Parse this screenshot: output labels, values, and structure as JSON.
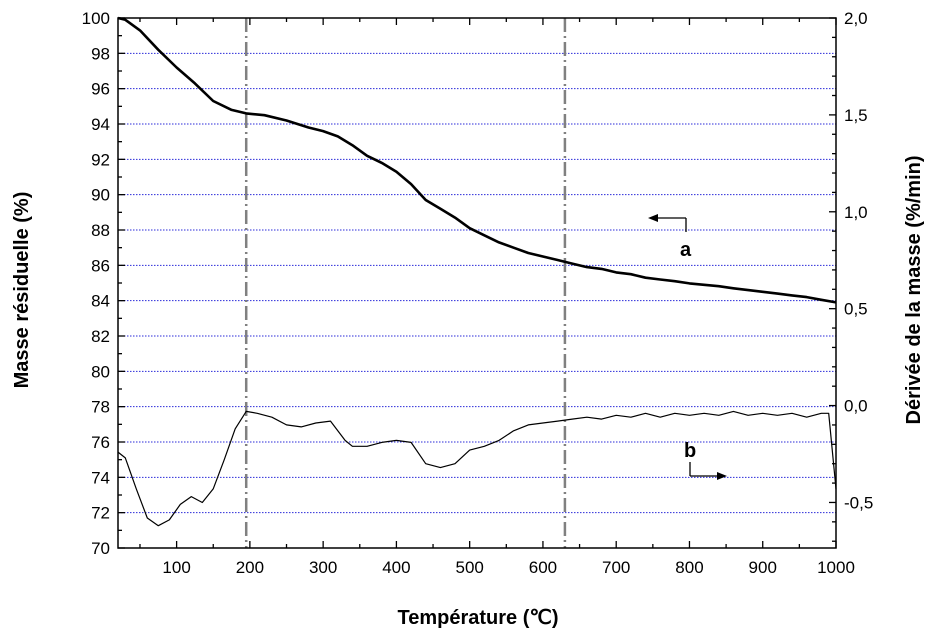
{
  "chart_data": {
    "type": "line",
    "title": "",
    "xlabel": "Température (℃)",
    "ylabel": "Masse résiduelle (%)",
    "y2label": "Dérivée de la masse (%/min)",
    "xlim": [
      20,
      1000
    ],
    "ylim": [
      70,
      100
    ],
    "y2lim": [
      -0.735,
      2.0
    ],
    "x_ticks": [
      100,
      200,
      300,
      400,
      500,
      600,
      700,
      800,
      900,
      1000
    ],
    "y_ticks": [
      70,
      72,
      74,
      76,
      78,
      80,
      82,
      84,
      86,
      88,
      90,
      92,
      94,
      96,
      98,
      100
    ],
    "y2_ticks": [
      {
        "value": 2.0,
        "label": "2,0"
      },
      {
        "value": 1.5,
        "label": "1,5"
      },
      {
        "value": 1.0,
        "label": "1,0"
      },
      {
        "value": 0.5,
        "label": "0,5"
      },
      {
        "value": 0.0,
        "label": "0,0"
      },
      {
        "value": -0.5,
        "label": "-0,5"
      }
    ],
    "grid": {
      "horizontal": true,
      "color": "#2b2bd9",
      "style": "dotted"
    },
    "reference_lines_x": [
      195,
      630
    ],
    "series": [
      {
        "name": "a",
        "axis": "left",
        "color": "#000000",
        "x": [
          20,
          30,
          50,
          75,
          100,
          125,
          150,
          175,
          195,
          220,
          250,
          280,
          300,
          320,
          340,
          360,
          380,
          400,
          420,
          440,
          460,
          480,
          500,
          520,
          540,
          560,
          580,
          600,
          620,
          640,
          660,
          680,
          700,
          720,
          740,
          760,
          780,
          800,
          820,
          840,
          860,
          880,
          900,
          920,
          940,
          960,
          980,
          1000
        ],
        "y": [
          100.0,
          99.9,
          99.3,
          98.2,
          97.2,
          96.3,
          95.3,
          94.8,
          94.6,
          94.5,
          94.2,
          93.8,
          93.6,
          93.3,
          92.8,
          92.2,
          91.8,
          91.3,
          90.6,
          89.7,
          89.2,
          88.7,
          88.1,
          87.7,
          87.3,
          87.0,
          86.7,
          86.5,
          86.3,
          86.1,
          85.9,
          85.8,
          85.6,
          85.5,
          85.3,
          85.2,
          85.1,
          84.98,
          84.9,
          84.82,
          84.7,
          84.6,
          84.5,
          84.4,
          84.3,
          84.2,
          84.05,
          83.9
        ]
      },
      {
        "name": "b",
        "axis": "right",
        "color": "#000000",
        "x": [
          20,
          30,
          45,
          60,
          75,
          90,
          105,
          120,
          135,
          150,
          165,
          180,
          195,
          210,
          230,
          250,
          270,
          290,
          310,
          330,
          340,
          360,
          380,
          400,
          420,
          440,
          460,
          480,
          500,
          520,
          540,
          560,
          580,
          600,
          620,
          640,
          660,
          680,
          700,
          720,
          740,
          760,
          780,
          800,
          820,
          840,
          860,
          880,
          900,
          920,
          940,
          960,
          980,
          990,
          1000
        ],
        "y": [
          -0.24,
          -0.27,
          -0.43,
          -0.58,
          -0.62,
          -0.59,
          -0.51,
          -0.47,
          -0.5,
          -0.43,
          -0.28,
          -0.12,
          -0.03,
          -0.04,
          -0.06,
          -0.1,
          -0.11,
          -0.09,
          -0.08,
          -0.18,
          -0.21,
          -0.21,
          -0.19,
          -0.18,
          -0.19,
          -0.3,
          -0.32,
          -0.3,
          -0.23,
          -0.21,
          -0.18,
          -0.13,
          -0.1,
          -0.09,
          -0.08,
          -0.07,
          -0.06,
          -0.07,
          -0.05,
          -0.06,
          -0.04,
          -0.06,
          -0.04,
          -0.05,
          -0.04,
          -0.05,
          -0.03,
          -0.05,
          -0.04,
          -0.05,
          -0.04,
          -0.06,
          -0.04,
          -0.04,
          -0.43
        ]
      }
    ],
    "annotations": [
      {
        "text": "a",
        "direction": "left",
        "series": "a"
      },
      {
        "text": "b",
        "direction": "right",
        "series": "b"
      }
    ]
  }
}
